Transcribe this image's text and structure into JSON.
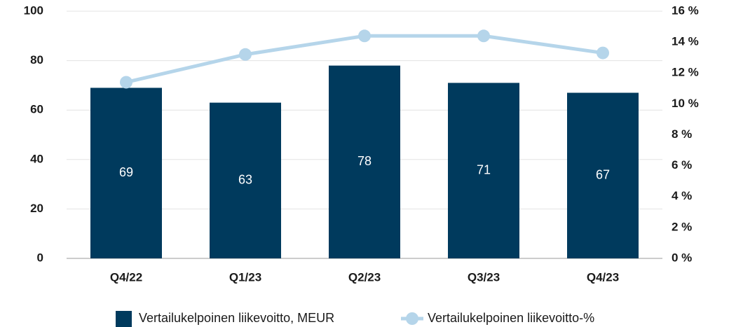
{
  "chart_data": {
    "type": "bar-line",
    "categories": [
      "Q4/22",
      "Q1/23",
      "Q2/23",
      "Q3/23",
      "Q4/23"
    ],
    "series": [
      {
        "name": "Vertailukelpoinen liikevoitto, MEUR",
        "type": "bar",
        "color": "#003a5d",
        "values": [
          69,
          63,
          78,
          71,
          67
        ]
      },
      {
        "name": "Vertailukelpoinen liikevoitto-%",
        "type": "line",
        "axis": "y2",
        "color": "#b5d5ea",
        "values": [
          11.4,
          13.2,
          14.4,
          14.4,
          13.3
        ]
      }
    ],
    "ylim": [
      0,
      100
    ],
    "yticks": [
      0,
      20,
      40,
      60,
      80,
      100
    ],
    "y2lim": [
      0,
      16
    ],
    "y2ticks": [
      {
        "value": 0,
        "label": "0 %"
      },
      {
        "value": 2,
        "label": "2 %"
      },
      {
        "value": 4,
        "label": "4 %"
      },
      {
        "value": 6,
        "label": "6 %"
      },
      {
        "value": 8,
        "label": "8 %"
      },
      {
        "value": 10,
        "label": "10 %"
      },
      {
        "value": 12,
        "label": "12 %"
      },
      {
        "value": 14,
        "label": "14 %"
      },
      {
        "value": 16,
        "label": "16 %"
      }
    ],
    "grid": true,
    "legend": "bottom"
  }
}
